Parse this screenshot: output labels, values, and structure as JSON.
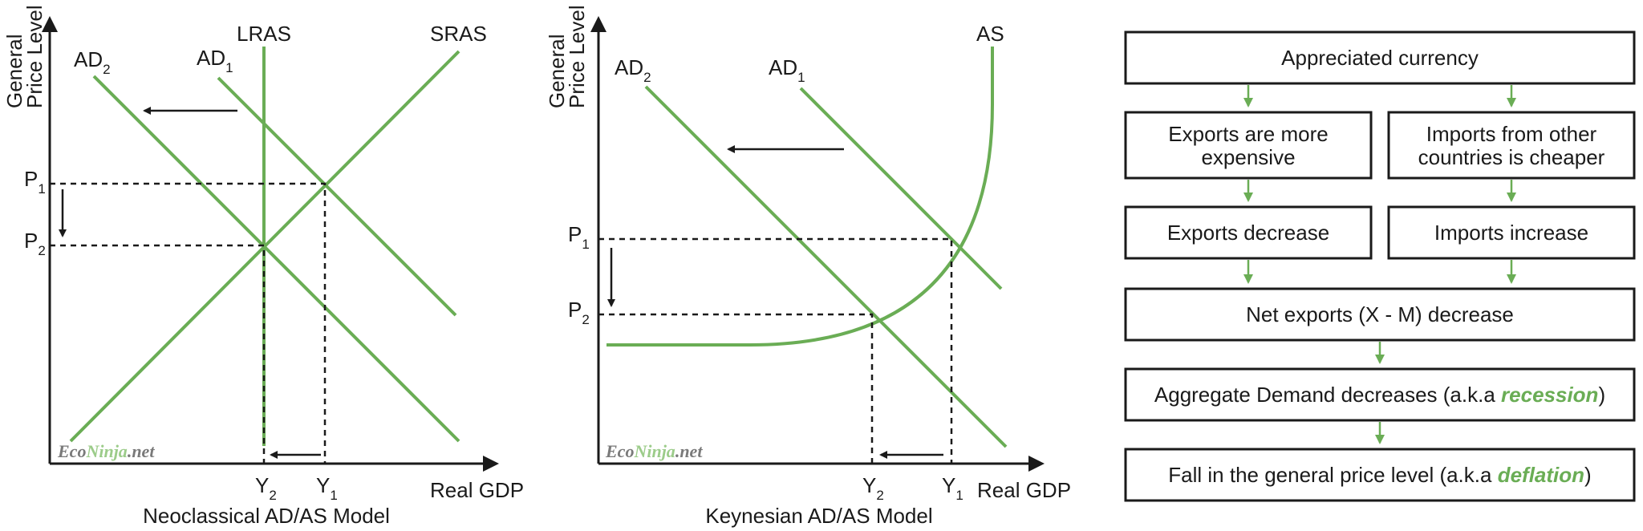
{
  "colors": {
    "curve": "#6aad55",
    "ink": "#1a1a1a",
    "watermark_green": "#9ccc8a",
    "watermark_gray": "#7a7a7a"
  },
  "neoclassical": {
    "y_axis_label_line1": "General",
    "y_axis_label_line2": "Price Level",
    "x_axis_label": "Real GDP",
    "caption": "Neoclassical AD/AS Model",
    "lras": "LRAS",
    "sras": "SRAS",
    "ad2_base": "AD",
    "ad2_sub": "2",
    "ad1_base": "AD",
    "ad1_sub": "1",
    "p1_base": "P",
    "p1_sub": "1",
    "p2_base": "P",
    "p2_sub": "2",
    "y2_base": "Y",
    "y2_sub": "2",
    "y1_base": "Y",
    "y1_sub": "1",
    "watermark_a": "Eco",
    "watermark_b": "Ninja",
    "watermark_c": ".net"
  },
  "keynesian": {
    "y_axis_label_line1": "General",
    "y_axis_label_line2": "Price Level",
    "x_axis_label": "Real GDP",
    "caption": "Keynesian AD/AS Model",
    "as": "AS",
    "ad2_base": "AD",
    "ad2_sub": "2",
    "ad1_base": "AD",
    "ad1_sub": "1",
    "p1_base": "P",
    "p1_sub": "1",
    "p2_base": "P",
    "p2_sub": "2",
    "y2_base": "Y",
    "y2_sub": "2",
    "y1_base": "Y",
    "y1_sub": "1",
    "watermark_a": "Eco",
    "watermark_b": "Ninja",
    "watermark_c": ".net"
  },
  "flowchart": {
    "appreciated": "Appreciated currency",
    "exports_expensive_1": "Exports are more",
    "exports_expensive_2": "expensive",
    "imports_cheaper_1": "Imports from other",
    "imports_cheaper_2": "countries is cheaper",
    "exports_decrease": "Exports decrease",
    "imports_increase": "Imports increase",
    "net_exports": "Net exports (X - M) decrease",
    "ad_decrease_pre": "Aggregate Demand decreases (a.k.a ",
    "ad_decrease_em": "recession",
    "ad_decrease_post": ")",
    "fall_pre": "Fall in the general price level (a.k.a ",
    "fall_em": "deflation",
    "fall_post": ")"
  }
}
